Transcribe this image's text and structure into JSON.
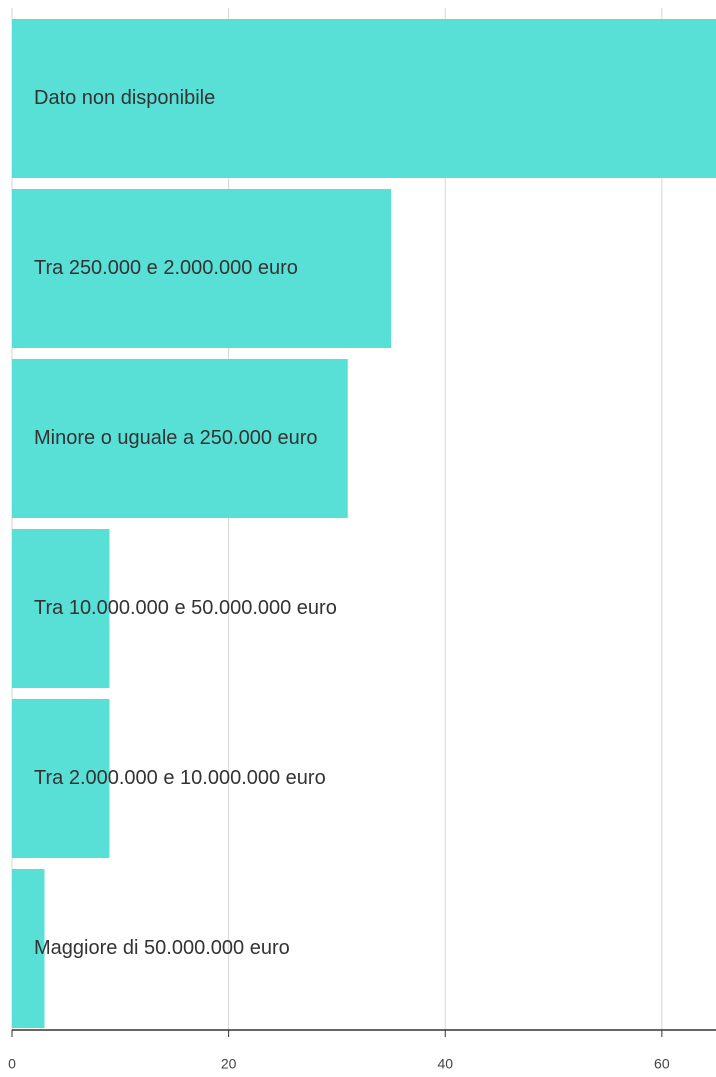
{
  "chart_data": {
    "type": "barh",
    "categories": [
      "Dato non disponibile",
      "Tra 250.000 e 2.000.000 euro",
      "Minore o uguale a 250.000 euro",
      "Tra 10.000.000 e 50.000.000 euro",
      "Tra 2.000.000 e 10.000.000 euro",
      "Maggiore di 50.000.000 euro"
    ],
    "values": [
      65,
      35,
      31,
      9,
      9,
      3
    ],
    "color": "#53dfd6",
    "xlim": [
      0,
      65
    ],
    "xticks": [
      0,
      20,
      40,
      60
    ],
    "grid": true
  }
}
